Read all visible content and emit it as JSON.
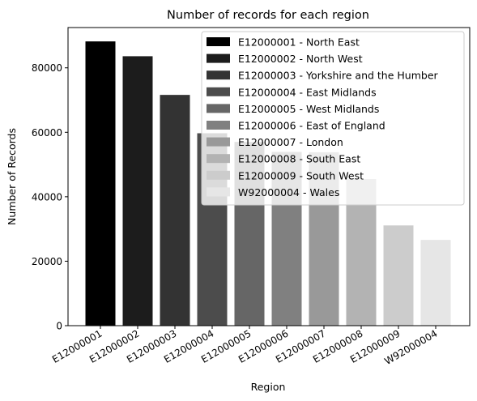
{
  "chart_data": {
    "type": "bar",
    "title": "Number of records for each region",
    "xlabel": "Region",
    "ylabel": "Number of Records",
    "ylim": [
      0,
      92500
    ],
    "yticks": [
      0,
      20000,
      40000,
      60000,
      80000
    ],
    "grid": false,
    "legend_position": "top-right",
    "categories": [
      "E12000001",
      "E12000002",
      "E12000003",
      "E12000004",
      "E12000005",
      "E12000006",
      "E12000007",
      "E12000008",
      "E12000009",
      "W92000004"
    ],
    "values": [
      88200,
      83600,
      71600,
      59700,
      57000,
      53900,
      53800,
      45500,
      31100,
      26600
    ],
    "colors": [
      "#000000",
      "#1c1c1c",
      "#333333",
      "#4c4c4c",
      "#666666",
      "#808080",
      "#999999",
      "#b3b3b3",
      "#cccccc",
      "#e6e6e6"
    ],
    "legend": [
      "E12000001 - North East",
      "E12000002 - North West",
      "E12000003 - Yorkshire and the Humber",
      "E12000004 - East Midlands",
      "E12000005 - West Midlands",
      "E12000006 - East of England",
      "E12000007 - London",
      "E12000008 - South East",
      "E12000009 - South West",
      "W92000004 - Wales"
    ]
  }
}
